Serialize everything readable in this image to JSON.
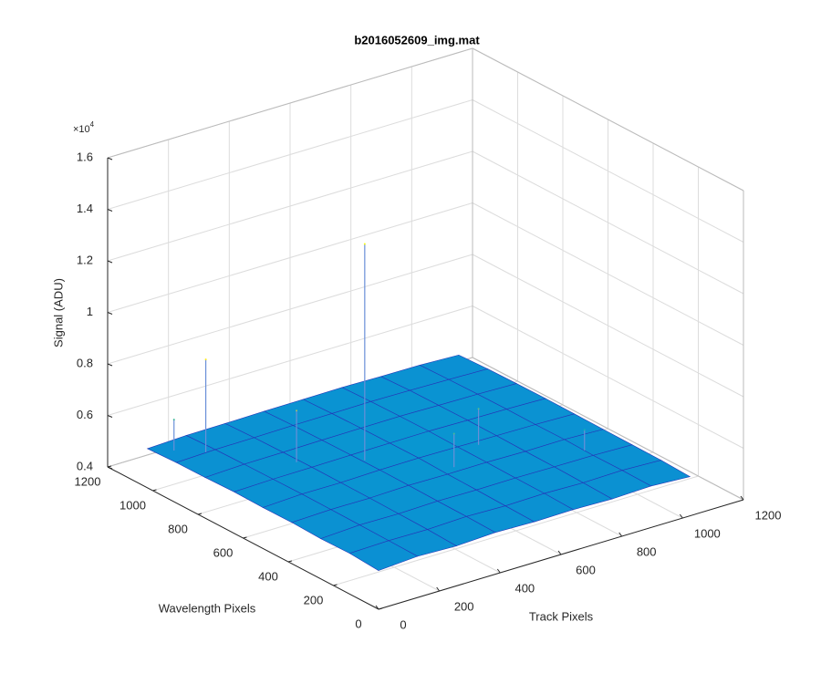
{
  "chart_data": {
    "type": "surface",
    "title": "b2016052609_img.mat",
    "xlabel": "Track Pixels",
    "ylabel": "Wavelength Pixels",
    "zlabel": "Signal (ADU)",
    "z_exponent": {
      "base": "×10",
      "power": "4"
    },
    "xlim": [
      0,
      1200
    ],
    "ylim": [
      0,
      1200
    ],
    "zlim": [
      4000,
      16000
    ],
    "xticks": [
      0,
      200,
      400,
      600,
      800,
      1000,
      1200
    ],
    "yticks": [
      0,
      200,
      400,
      600,
      800,
      1000,
      1200
    ],
    "zticks": [
      {
        "value": 4000,
        "label": "0.4"
      },
      {
        "value": 6000,
        "label": "0.6"
      },
      {
        "value": 8000,
        "label": "0.8"
      },
      {
        "value": 10000,
        "label": "1"
      },
      {
        "value": 12000,
        "label": "1.2"
      },
      {
        "value": 14000,
        "label": "1.4"
      },
      {
        "value": 16000,
        "label": "1.6"
      }
    ],
    "grid": true,
    "colormap": "parula",
    "x": [
      0,
      128,
      256,
      384,
      512,
      640,
      768,
      896,
      1024
    ],
    "y": [
      0,
      128,
      256,
      384,
      512,
      640,
      768,
      896,
      1024
    ],
    "z": [
      [
        5500,
        5600,
        5550,
        5620,
        5580,
        5600,
        5560,
        5610,
        5520
      ],
      [
        5580,
        5620,
        5600,
        5650,
        5610,
        5640,
        5600,
        5630,
        5570
      ],
      [
        5560,
        5640,
        5620,
        5660,
        5640,
        5650,
        5630,
        5620,
        5580
      ],
      [
        5600,
        5650,
        5640,
        5680,
        5660,
        5670,
        5640,
        5650,
        5590
      ],
      [
        5590,
        5660,
        5650,
        5690,
        5700,
        5680,
        5660,
        5640,
        5600
      ],
      [
        5610,
        5650,
        5660,
        5680,
        5690,
        5700,
        5670,
        5650,
        5610
      ],
      [
        5580,
        5640,
        5650,
        5670,
        5680,
        5690,
        5660,
        5640,
        5600
      ],
      [
        5570,
        5620,
        5630,
        5650,
        5660,
        5670,
        5650,
        5620,
        5580
      ],
      [
        5520,
        5580,
        5590,
        5610,
        5620,
        5630,
        5600,
        5590,
        5530
      ]
    ],
    "spikes": [
      {
        "x": 400,
        "y": 600,
        "z": 14000
      },
      {
        "x": 100,
        "y": 900,
        "z": 9200
      },
      {
        "x": 40,
        "y": 960,
        "z": 6800
      },
      {
        "x": 250,
        "y": 700,
        "z": 7600
      },
      {
        "x": 700,
        "y": 500,
        "z": 7000
      },
      {
        "x": 560,
        "y": 420,
        "z": 6900
      },
      {
        "x": 900,
        "y": 300,
        "z": 6400
      }
    ]
  }
}
